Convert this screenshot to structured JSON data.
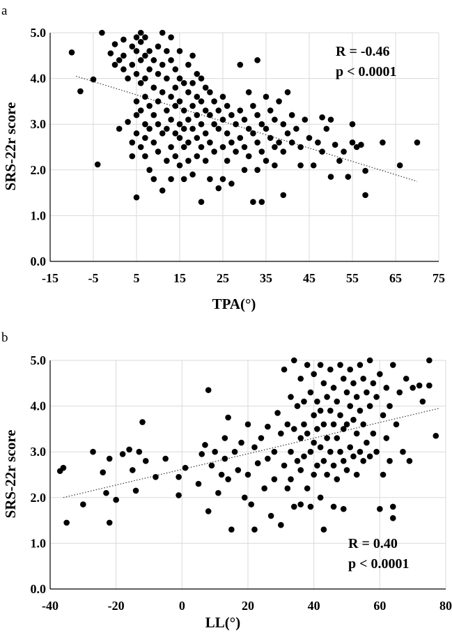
{
  "chart_data": [
    {
      "panel_label": "a",
      "type": "scatter",
      "xlabel": "TPA(°)",
      "ylabel": "SRS-22r score",
      "xlim": [
        -15,
        75
      ],
      "ylim": [
        0.0,
        5.0
      ],
      "x_ticks": [
        "-15",
        "-5",
        "5",
        "15",
        "25",
        "35",
        "45",
        "55",
        "65",
        "75"
      ],
      "y_ticks": [
        "0.0",
        "1.0",
        "2.0",
        "3.0",
        "4.0",
        "5.0"
      ],
      "grid": "x and y major gridlines",
      "trendline": {
        "style": "dotted",
        "x": [
          -9,
          70
        ],
        "y": [
          4.05,
          1.75
        ]
      },
      "annotation_r": "R = -0.46",
      "annotation_p": "p < 0.0001",
      "annotation_position": "top-right",
      "points": [
        [
          -10,
          4.57
        ],
        [
          -8,
          3.72
        ],
        [
          -4,
          2.12
        ],
        [
          -5,
          3.98
        ],
        [
          -3,
          5.0
        ],
        [
          -1,
          4.55
        ],
        [
          0,
          4.75
        ],
        [
          0,
          4.3
        ],
        [
          1,
          4.4
        ],
        [
          1,
          2.9
        ],
        [
          2,
          4.85
        ],
        [
          2,
          4.5
        ],
        [
          2,
          4.2
        ],
        [
          3,
          4.0
        ],
        [
          3,
          3.05
        ],
        [
          4,
          4.7
        ],
        [
          4,
          4.3
        ],
        [
          4,
          2.6
        ],
        [
          4,
          2.3
        ],
        [
          5,
          4.9
        ],
        [
          5,
          4.6
        ],
        [
          5,
          4.1
        ],
        [
          5,
          3.5
        ],
        [
          5,
          3.2
        ],
        [
          5,
          2.8
        ],
        [
          5,
          1.4
        ],
        [
          6,
          5.0
        ],
        [
          6,
          4.8
        ],
        [
          6,
          4.4
        ],
        [
          6,
          3.9
        ],
        [
          6,
          3.3
        ],
        [
          6,
          2.5
        ],
        [
          7,
          4.9
        ],
        [
          7,
          4.5
        ],
        [
          7,
          4.0
        ],
        [
          7,
          3.6
        ],
        [
          7,
          3.0
        ],
        [
          7,
          2.7
        ],
        [
          7,
          2.3
        ],
        [
          8,
          4.6
        ],
        [
          8,
          4.2
        ],
        [
          8,
          3.4
        ],
        [
          8,
          2.9
        ],
        [
          8,
          2.0
        ],
        [
          9,
          4.4
        ],
        [
          9,
          3.8
        ],
        [
          9,
          3.2
        ],
        [
          9,
          2.6
        ],
        [
          9,
          1.8
        ],
        [
          10,
          4.7
        ],
        [
          10,
          4.1
        ],
        [
          10,
          3.5
        ],
        [
          10,
          3.0
        ],
        [
          10,
          2.4
        ],
        [
          11,
          5.0
        ],
        [
          11,
          4.3
        ],
        [
          11,
          3.7
        ],
        [
          11,
          2.8
        ],
        [
          11,
          1.55
        ],
        [
          12,
          4.6
        ],
        [
          12,
          4.0
        ],
        [
          12,
          3.3
        ],
        [
          12,
          2.9
        ],
        [
          12,
          2.2
        ],
        [
          13,
          4.9
        ],
        [
          13,
          4.4
        ],
        [
          13,
          3.6
        ],
        [
          13,
          3.1
        ],
        [
          13,
          2.5
        ],
        [
          13,
          1.8
        ],
        [
          14,
          4.2
        ],
        [
          14,
          3.8
        ],
        [
          14,
          3.4
        ],
        [
          14,
          2.8
        ],
        [
          14,
          2.3
        ],
        [
          15,
          4.6
        ],
        [
          15,
          4.0
        ],
        [
          15,
          3.5
        ],
        [
          15,
          3.0
        ],
        [
          15,
          2.7
        ],
        [
          15,
          2.1
        ],
        [
          16,
          3.9
        ],
        [
          16,
          3.3
        ],
        [
          16,
          2.9
        ],
        [
          16,
          2.5
        ],
        [
          16,
          1.8
        ],
        [
          17,
          4.3
        ],
        [
          17,
          3.7
        ],
        [
          17,
          3.1
        ],
        [
          17,
          2.6
        ],
        [
          17,
          2.2
        ],
        [
          18,
          4.5
        ],
        [
          18,
          3.9
        ],
        [
          18,
          3.4
        ],
        [
          18,
          2.9
        ],
        [
          18,
          1.9
        ],
        [
          19,
          4.1
        ],
        [
          19,
          3.6
        ],
        [
          19,
          3.2
        ],
        [
          19,
          2.7
        ],
        [
          19,
          2.3
        ],
        [
          20,
          4.0
        ],
        [
          20,
          3.5
        ],
        [
          20,
          3.0
        ],
        [
          20,
          2.5
        ],
        [
          20,
          1.3
        ],
        [
          21,
          3.8
        ],
        [
          21,
          3.3
        ],
        [
          21,
          2.8
        ],
        [
          21,
          2.2
        ],
        [
          22,
          3.7
        ],
        [
          22,
          3.2
        ],
        [
          22,
          2.6
        ],
        [
          22,
          1.8
        ],
        [
          23,
          3.5
        ],
        [
          23,
          3.0
        ],
        [
          23,
          2.4
        ],
        [
          24,
          3.3
        ],
        [
          24,
          2.9
        ],
        [
          24,
          1.6
        ],
        [
          25,
          3.6
        ],
        [
          25,
          3.1
        ],
        [
          25,
          2.5
        ],
        [
          25,
          1.8
        ],
        [
          26,
          3.4
        ],
        [
          26,
          2.8
        ],
        [
          26,
          2.2
        ],
        [
          27,
          3.2
        ],
        [
          27,
          2.6
        ],
        [
          27,
          1.7
        ],
        [
          28,
          3.0
        ],
        [
          28,
          2.4
        ],
        [
          29,
          4.3
        ],
        [
          29,
          3.3
        ],
        [
          29,
          2.7
        ],
        [
          30,
          3.1
        ],
        [
          30,
          2.5
        ],
        [
          30,
          2.0
        ],
        [
          31,
          3.7
        ],
        [
          31,
          2.9
        ],
        [
          31,
          2.3
        ],
        [
          32,
          3.4
        ],
        [
          32,
          2.8
        ],
        [
          32,
          1.3
        ],
        [
          33,
          4.4
        ],
        [
          33,
          3.2
        ],
        [
          33,
          2.6
        ],
        [
          33,
          2.0
        ],
        [
          34,
          3.0
        ],
        [
          34,
          2.4
        ],
        [
          34,
          1.3
        ],
        [
          35,
          3.6
        ],
        [
          35,
          2.9
        ],
        [
          35,
          2.2
        ],
        [
          36,
          3.3
        ],
        [
          36,
          2.7
        ],
        [
          37,
          3.1
        ],
        [
          37,
          2.5
        ],
        [
          37,
          2.1
        ],
        [
          38,
          3.5
        ],
        [
          38,
          2.6
        ],
        [
          39,
          3.0
        ],
        [
          39,
          2.4
        ],
        [
          39,
          1.45
        ],
        [
          40,
          3.7
        ],
        [
          40,
          2.8
        ],
        [
          41,
          3.2
        ],
        [
          41,
          2.6
        ],
        [
          42,
          2.9
        ],
        [
          43,
          2.5
        ],
        [
          43,
          2.1
        ],
        [
          44,
          3.1
        ],
        [
          45,
          2.7
        ],
        [
          46,
          2.1
        ],
        [
          47,
          2.6
        ],
        [
          48,
          3.15
        ],
        [
          48,
          2.4
        ],
        [
          49,
          2.9
        ],
        [
          50,
          3.1
        ],
        [
          50,
          1.85
        ],
        [
          51,
          2.55
        ],
        [
          52,
          2.2
        ],
        [
          53,
          2.4
        ],
        [
          54,
          1.85
        ],
        [
          55,
          2.6
        ],
        [
          55,
          3.0
        ],
        [
          56,
          2.5
        ],
        [
          57,
          2.55
        ],
        [
          58,
          1.45
        ],
        [
          58,
          1.98
        ],
        [
          62,
          2.6
        ],
        [
          66,
          2.1
        ],
        [
          70,
          2.6
        ]
      ]
    },
    {
      "panel_label": "b",
      "type": "scatter",
      "xlabel": "LL(°)",
      "ylabel": "SRS-22r score",
      "xlim": [
        -40,
        80
      ],
      "ylim": [
        0.0,
        5.0
      ],
      "x_ticks": [
        "-40",
        "-20",
        "0",
        "20",
        "40",
        "60",
        "80"
      ],
      "y_ticks": [
        "0.0",
        "1.0",
        "2.0",
        "3.0",
        "4.0",
        "5.0"
      ],
      "grid": "x and y major gridlines",
      "trendline": {
        "style": "dotted",
        "x": [
          -36,
          78
        ],
        "y": [
          2.0,
          3.95
        ]
      },
      "annotation_r": "R = 0.40",
      "annotation_p": "p < 0.0001",
      "annotation_position": "bottom-right",
      "points": [
        [
          -37,
          2.58
        ],
        [
          -36,
          2.65
        ],
        [
          -35,
          1.45
        ],
        [
          -30,
          1.85
        ],
        [
          -27,
          3.0
        ],
        [
          -24,
          2.55
        ],
        [
          -23,
          2.1
        ],
        [
          -22,
          1.45
        ],
        [
          -22,
          2.85
        ],
        [
          -20,
          1.95
        ],
        [
          -18,
          2.95
        ],
        [
          -16,
          3.05
        ],
        [
          -15,
          2.6
        ],
        [
          -14,
          2.15
        ],
        [
          -13,
          3.0
        ],
        [
          -12,
          3.65
        ],
        [
          -11,
          2.8
        ],
        [
          -8,
          2.45
        ],
        [
          -5,
          2.85
        ],
        [
          -1,
          2.45
        ],
        [
          -1,
          2.05
        ],
        [
          1,
          2.65
        ],
        [
          5,
          2.3
        ],
        [
          6,
          2.95
        ],
        [
          7,
          3.15
        ],
        [
          8,
          4.35
        ],
        [
          8,
          1.7
        ],
        [
          9,
          2.7
        ],
        [
          10,
          3.0
        ],
        [
          11,
          2.1
        ],
        [
          12,
          2.5
        ],
        [
          13,
          3.3
        ],
        [
          13,
          2.85
        ],
        [
          14,
          3.75
        ],
        [
          14,
          2.4
        ],
        [
          15,
          1.3
        ],
        [
          16,
          3.0
        ],
        [
          17,
          2.6
        ],
        [
          18,
          3.2
        ],
        [
          19,
          2.0
        ],
        [
          20,
          3.6
        ],
        [
          20,
          2.5
        ],
        [
          21,
          1.85
        ],
        [
          22,
          3.1
        ],
        [
          22,
          1.3
        ],
        [
          23,
          2.75
        ],
        [
          24,
          3.3
        ],
        [
          25,
          2.2
        ],
        [
          26,
          3.55
        ],
        [
          26,
          2.85
        ],
        [
          27,
          1.6
        ],
        [
          28,
          3.0
        ],
        [
          28,
          2.4
        ],
        [
          29,
          3.85
        ],
        [
          30,
          3.4
        ],
        [
          30,
          1.4
        ],
        [
          31,
          2.7
        ],
        [
          31,
          4.8
        ],
        [
          32,
          3.6
        ],
        [
          32,
          2.2
        ],
        [
          33,
          4.2
        ],
        [
          33,
          3.0
        ],
        [
          33,
          2.4
        ],
        [
          34,
          5.0
        ],
        [
          34,
          3.5
        ],
        [
          34,
          1.8
        ],
        [
          35,
          4.0
        ],
        [
          35,
          2.8
        ],
        [
          36,
          4.6
        ],
        [
          36,
          3.3
        ],
        [
          36,
          2.6
        ],
        [
          36,
          1.85
        ],
        [
          37,
          4.1
        ],
        [
          37,
          3.6
        ],
        [
          37,
          2.9
        ],
        [
          38,
          4.9
        ],
        [
          38,
          3.4
        ],
        [
          38,
          2.2
        ],
        [
          39,
          4.3
        ],
        [
          39,
          3.0
        ],
        [
          39,
          1.8
        ],
        [
          40,
          4.7
        ],
        [
          40,
          3.8
        ],
        [
          40,
          3.2
        ],
        [
          40,
          2.5
        ],
        [
          41,
          4.1
        ],
        [
          41,
          3.5
        ],
        [
          41,
          2.7
        ],
        [
          42,
          4.9
        ],
        [
          42,
          3.9
        ],
        [
          42,
          3.1
        ],
        [
          42,
          2.0
        ],
        [
          43,
          4.5
        ],
        [
          43,
          3.6
        ],
        [
          43,
          2.8
        ],
        [
          43,
          1.3
        ],
        [
          44,
          4.2
        ],
        [
          44,
          3.3
        ],
        [
          44,
          2.5
        ],
        [
          45,
          4.8
        ],
        [
          45,
          3.9
        ],
        [
          45,
          3.0
        ],
        [
          46,
          4.4
        ],
        [
          46,
          3.6
        ],
        [
          46,
          2.7
        ],
        [
          46,
          1.8
        ],
        [
          47,
          4.1
        ],
        [
          47,
          3.3
        ],
        [
          47,
          2.4
        ],
        [
          48,
          4.9
        ],
        [
          48,
          3.8
        ],
        [
          48,
          3.0
        ],
        [
          49,
          4.6
        ],
        [
          49,
          3.5
        ],
        [
          49,
          2.8
        ],
        [
          49,
          1.75
        ],
        [
          50,
          4.3
        ],
        [
          50,
          3.6
        ],
        [
          50,
          2.6
        ],
        [
          51,
          4.8
        ],
        [
          51,
          4.0
        ],
        [
          51,
          3.1
        ],
        [
          52,
          4.5
        ],
        [
          52,
          3.7
        ],
        [
          52,
          2.9
        ],
        [
          53,
          4.2
        ],
        [
          53,
          3.4
        ],
        [
          53,
          2.5
        ],
        [
          54,
          4.9
        ],
        [
          54,
          3.9
        ],
        [
          54,
          3.0
        ],
        [
          55,
          4.6
        ],
        [
          55,
          3.6
        ],
        [
          55,
          2.8
        ],
        [
          56,
          4.3
        ],
        [
          56,
          3.2
        ],
        [
          57,
          5.0
        ],
        [
          57,
          4.0
        ],
        [
          57,
          2.9
        ],
        [
          58,
          4.5
        ],
        [
          58,
          3.4
        ],
        [
          59,
          4.2
        ],
        [
          59,
          3.0
        ],
        [
          60,
          4.7
        ],
        [
          60,
          1.75
        ],
        [
          61,
          3.8
        ],
        [
          61,
          2.5
        ],
        [
          62,
          4.4
        ],
        [
          62,
          3.3
        ],
        [
          63,
          4.0
        ],
        [
          63,
          2.8
        ],
        [
          64,
          4.9
        ],
        [
          64,
          1.8
        ],
        [
          64,
          1.55
        ],
        [
          65,
          3.6
        ],
        [
          66,
          4.3
        ],
        [
          67,
          3.0
        ],
        [
          68,
          4.6
        ],
        [
          69,
          2.8
        ],
        [
          70,
          4.4
        ],
        [
          72,
          4.45
        ],
        [
          73,
          4.1
        ],
        [
          75,
          5.0
        ],
        [
          75,
          4.45
        ],
        [
          77,
          3.35
        ]
      ]
    }
  ]
}
